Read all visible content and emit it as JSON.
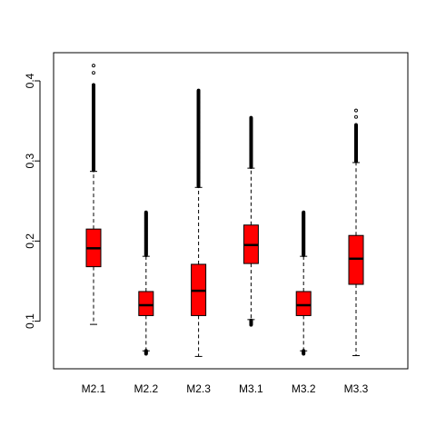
{
  "chart_data": {
    "type": "boxplot",
    "title": "",
    "xlabel": "",
    "ylabel": "",
    "ylim": [
      0.04,
      0.43
    ],
    "yticks": [
      0.1,
      0.2,
      0.3,
      0.4
    ],
    "ytick_labels": [
      "0.1",
      "0.2",
      "0.3",
      "0.4"
    ],
    "box_color": "#ff0000",
    "categories": [
      "M2.1",
      "M2.2",
      "M2.3",
      "M3.1",
      "M3.2",
      "M3.3"
    ],
    "boxes": [
      {
        "name": "M2.1",
        "lower_whisker": 0.096,
        "q1": 0.168,
        "median": 0.191,
        "q3": 0.215,
        "upper_whisker": 0.287,
        "outliers_high": {
          "from": 0.288,
          "to": 0.395,
          "top_points": [
            0.41,
            0.419
          ]
        },
        "outliers_low": null
      },
      {
        "name": "M2.2",
        "lower_whisker": 0.063,
        "q1": 0.107,
        "median": 0.12,
        "q3": 0.137,
        "upper_whisker": 0.181,
        "outliers_high": {
          "from": 0.182,
          "to": 0.236,
          "top_points": []
        },
        "outliers_low": {
          "from": 0.059,
          "to": 0.063
        }
      },
      {
        "name": "M2.3",
        "lower_whisker": 0.056,
        "q1": 0.107,
        "median": 0.138,
        "q3": 0.171,
        "upper_whisker": 0.267,
        "outliers_high": {
          "from": 0.268,
          "to": 0.388,
          "top_points": []
        },
        "outliers_low": null
      },
      {
        "name": "M3.1",
        "lower_whisker": 0.102,
        "q1": 0.172,
        "median": 0.195,
        "q3": 0.22,
        "upper_whisker": 0.291,
        "outliers_high": {
          "from": 0.292,
          "to": 0.354,
          "top_points": []
        },
        "outliers_low": {
          "from": 0.095,
          "to": 0.101
        }
      },
      {
        "name": "M3.2",
        "lower_whisker": 0.063,
        "q1": 0.107,
        "median": 0.12,
        "q3": 0.137,
        "upper_whisker": 0.181,
        "outliers_high": {
          "from": 0.182,
          "to": 0.236,
          "top_points": []
        },
        "outliers_low": {
          "from": 0.059,
          "to": 0.063
        }
      },
      {
        "name": "M3.3",
        "lower_whisker": 0.057,
        "q1": 0.146,
        "median": 0.178,
        "q3": 0.207,
        "upper_whisker": 0.298,
        "outliers_high": {
          "from": 0.299,
          "to": 0.345,
          "top_points": [
            0.355,
            0.363
          ]
        },
        "outliers_low": null
      }
    ]
  }
}
